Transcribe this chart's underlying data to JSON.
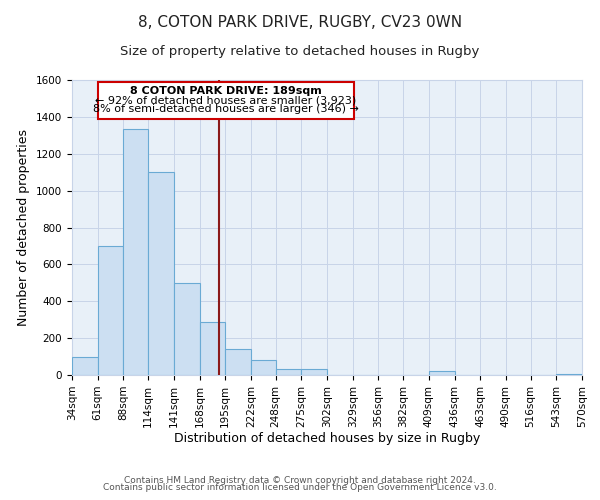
{
  "title": "8, COTON PARK DRIVE, RUGBY, CV23 0WN",
  "subtitle": "Size of property relative to detached houses in Rugby",
  "xlabel": "Distribution of detached houses by size in Rugby",
  "ylabel": "Number of detached properties",
  "footer_line1": "Contains HM Land Registry data © Crown copyright and database right 2024.",
  "footer_line2": "Contains public sector information licensed under the Open Government Licence v3.0.",
  "bar_edges": [
    34,
    61,
    88,
    114,
    141,
    168,
    195,
    222,
    248,
    275,
    302,
    329,
    356,
    382,
    409,
    436,
    463,
    490,
    516,
    543,
    570
  ],
  "bar_heights": [
    100,
    700,
    1335,
    1100,
    500,
    290,
    140,
    80,
    30,
    30,
    0,
    0,
    0,
    0,
    20,
    0,
    0,
    0,
    0,
    5
  ],
  "bar_color": "#ccdff2",
  "bar_edge_color": "#6aaad4",
  "property_size": 189,
  "vline_color": "#8b1a1a",
  "annotation_box_edge_color": "#cc0000",
  "annotation_title": "8 COTON PARK DRIVE: 189sqm",
  "annotation_line1": "← 92% of detached houses are smaller (3,923)",
  "annotation_line2": "8% of semi-detached houses are larger (346) →",
  "ylim": [
    0,
    1600
  ],
  "yticks": [
    0,
    200,
    400,
    600,
    800,
    1000,
    1200,
    1400,
    1600
  ],
  "background_color": "#ffffff",
  "grid_color": "#c8d4e8",
  "title_fontsize": 11,
  "subtitle_fontsize": 9.5,
  "axis_label_fontsize": 9,
  "tick_fontsize": 7.5,
  "annotation_fontsize": 8,
  "footer_fontsize": 6.5
}
